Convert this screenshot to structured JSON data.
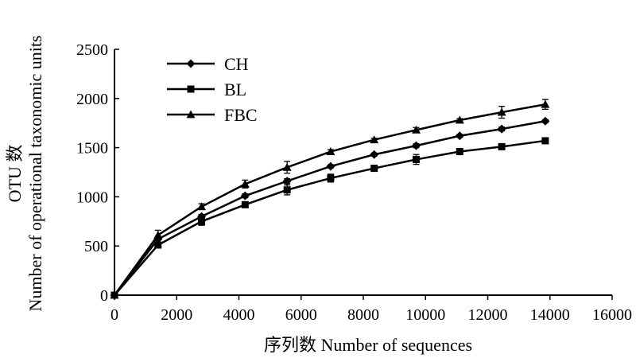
{
  "chart_data": {
    "type": "line",
    "title": "",
    "xlabel": "序列数 Number of sequences",
    "ylabel_lines": [
      "OTU 数",
      "Number of operational taxonomic units"
    ],
    "xlim": [
      0,
      16000
    ],
    "ylim": [
      0,
      2500
    ],
    "x_ticks": [
      0,
      2000,
      4000,
      6000,
      8000,
      10000,
      12000,
      14000,
      16000
    ],
    "y_ticks": [
      0,
      500,
      1000,
      1500,
      2000,
      2500
    ],
    "grid": false,
    "legend_position": "top-left",
    "x": [
      0,
      1400,
      2800,
      4200,
      5550,
      6950,
      8350,
      9700,
      11100,
      12450,
      13850
    ],
    "series": [
      {
        "name": "CH",
        "marker": "diamond",
        "values": [
          0,
          570,
          800,
          1010,
          1160,
          1310,
          1430,
          1520,
          1620,
          1690,
          1770
        ],
        "errors": [
          0,
          30,
          20,
          20,
          25,
          15,
          15,
          20,
          15,
          20,
          15
        ]
      },
      {
        "name": "BL",
        "marker": "square",
        "values": [
          0,
          510,
          750,
          920,
          1070,
          1190,
          1290,
          1380,
          1460,
          1510,
          1570
        ],
        "errors": [
          0,
          20,
          40,
          20,
          50,
          40,
          15,
          50,
          30,
          15,
          20
        ]
      },
      {
        "name": "FBC",
        "marker": "triangle",
        "values": [
          0,
          610,
          900,
          1130,
          1300,
          1460,
          1580,
          1680,
          1780,
          1860,
          1940
        ],
        "errors": [
          0,
          50,
          30,
          40,
          60,
          20,
          15,
          25,
          15,
          60,
          50
        ]
      }
    ]
  }
}
